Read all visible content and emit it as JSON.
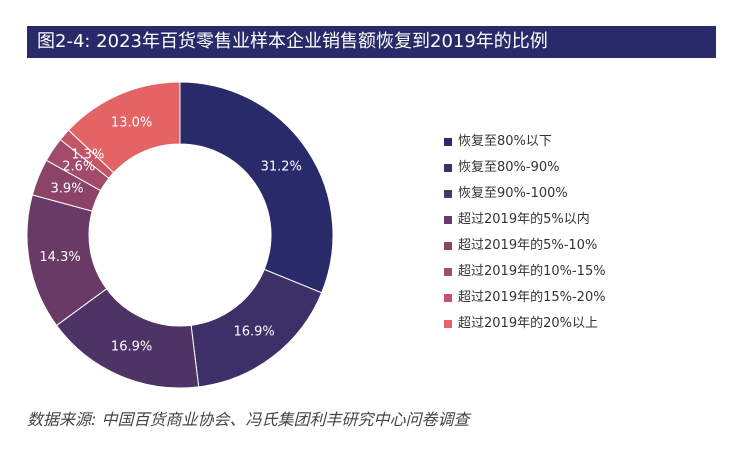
{
  "title": "图2-4: 2023年百货零售业样本企业销售额恢复到2019年的比例",
  "source": "数据来源: 中国百货商业协会、冯氏集团利丰研究中心问卷调查",
  "chart_data": {
    "type": "pie",
    "donut": true,
    "unit": "%",
    "legend_position": "right",
    "categories": [
      "恢复至80%以下",
      "恢复至80%-90%",
      "恢复至90%-100%",
      "超过2019年的5%以内",
      "超过2019年的5%-10%",
      "超过2019年的10%-15%",
      "超过2019年的15%-20%",
      "超过2019年的20%以上"
    ],
    "values": [
      31.2,
      16.9,
      16.9,
      14.3,
      3.9,
      2.6,
      1.3,
      13.0
    ],
    "labels": [
      "31.2%",
      "16.9%",
      "16.9%",
      "14.3%",
      "3.9%",
      "2.6%",
      "1.3%",
      "13.0%"
    ],
    "colors": [
      "#282a69",
      "#3d2f68",
      "#4e3366",
      "#6a3a66",
      "#8b4467",
      "#a24a6a",
      "#c45567",
      "#e46466"
    ]
  }
}
